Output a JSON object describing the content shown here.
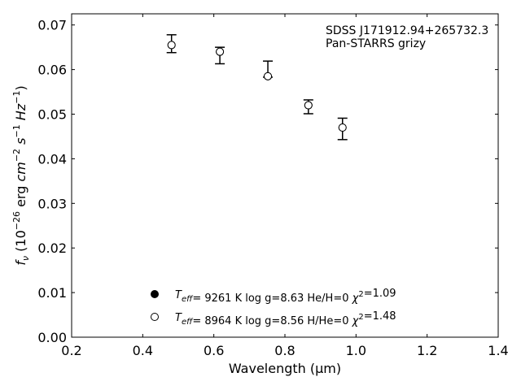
{
  "chart_data": {
    "type": "scatter",
    "annotation": [
      "SDSS J171912.94+265732.3",
      "Pan-STARRS grizy"
    ],
    "xlabel": "Wavelength (μm)",
    "ylabel": "f_ν (10^-26 erg cm^-2 s^-1 Hz^-1)",
    "xlim": [
      0.2,
      1.4
    ],
    "ylim": [
      0.0,
      0.0725
    ],
    "xticks": [
      "0.2",
      "0.4",
      "0.6",
      "0.8",
      "1.0",
      "1.2",
      "1.4"
    ],
    "yticks": [
      "0.00",
      "0.01",
      "0.02",
      "0.03",
      "0.04",
      "0.05",
      "0.06",
      "0.07"
    ],
    "grid": false,
    "observed": [
      {
        "x": 0.481,
        "y": 0.0658,
        "yerr_low": 0.0638,
        "yerr_high": 0.0678
      },
      {
        "x": 0.617,
        "y": 0.0639,
        "yerr_low": 0.0613,
        "yerr_high": 0.065
      },
      {
        "x": 0.752,
        "y": 0.0585,
        "yerr_low": 0.0583,
        "yerr_high": 0.0619
      },
      {
        "x": 0.866,
        "y": 0.0519,
        "yerr_low": 0.0501,
        "yerr_high": 0.0532
      },
      {
        "x": 0.962,
        "y": 0.0472,
        "yerr_low": 0.0443,
        "yerr_high": 0.0491
      }
    ],
    "series": [
      {
        "marker": "filled",
        "x": [
          0.481,
          0.617,
          0.752,
          0.866,
          0.962
        ],
        "y": [
          0.0655,
          0.064,
          0.0585,
          0.052,
          0.047
        ],
        "legend": {
          "teff": "9261 K",
          "logg": "log g=8.63",
          "comp": "He/H=0",
          "chi2": "=1.09"
        }
      },
      {
        "marker": "open",
        "x": [
          0.481,
          0.617,
          0.752,
          0.866,
          0.962
        ],
        "y": [
          0.0655,
          0.064,
          0.0585,
          0.052,
          0.047
        ],
        "legend": {
          "teff": "8964 K",
          "logg": "log g=8.56",
          "comp": "H/He=0",
          "chi2": "=1.48"
        }
      }
    ],
    "legend_position": "bottom-center"
  }
}
